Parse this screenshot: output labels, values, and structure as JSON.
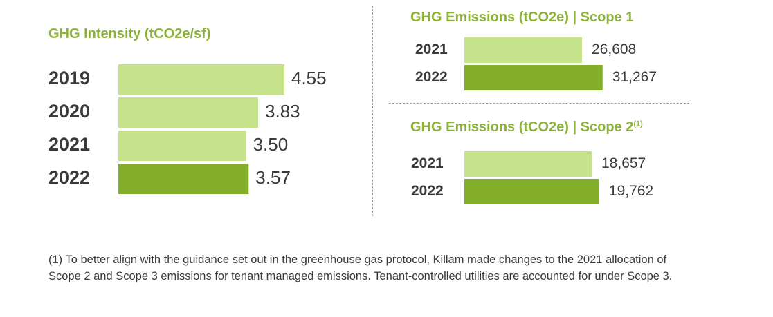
{
  "colors": {
    "light": "#c6e38c",
    "dark": "#82ae2a",
    "title": "#8cb23a"
  },
  "chart_data": [
    {
      "type": "bar",
      "title": "GHG Intensity (tCO2e/sf)",
      "title_sup": "",
      "categories": [
        "2019",
        "2020",
        "2021",
        "2022"
      ],
      "values": [
        4.55,
        3.83,
        3.5,
        3.57
      ],
      "value_labels": [
        "4.55",
        "3.83",
        "3.50",
        "3.57"
      ],
      "highlight": "2022",
      "orientation": "horizontal"
    },
    {
      "type": "bar",
      "title": "GHG Emissions (tCO2e) | Scope 1",
      "title_sup": "",
      "categories": [
        "2021",
        "2022"
      ],
      "values": [
        26608,
        31267
      ],
      "value_labels": [
        "26,608",
        "31,267"
      ],
      "highlight": "2022",
      "orientation": "horizontal"
    },
    {
      "type": "bar",
      "title": "GHG Emissions (tCO2e) | Scope 2",
      "title_sup": "(1)",
      "categories": [
        "2021",
        "2022"
      ],
      "values": [
        18657,
        19762
      ],
      "value_labels": [
        "18,657",
        "19,762"
      ],
      "highlight": "2022",
      "orientation": "horizontal"
    }
  ],
  "footnote": "(1) To better align with the guidance set out in the greenhouse gas protocol, Killam made changes to the 2021 allocation of Scope 2 and Scope 3 emissions for tenant managed emissions. Tenant-controlled utilities are accounted for under Scope 3."
}
